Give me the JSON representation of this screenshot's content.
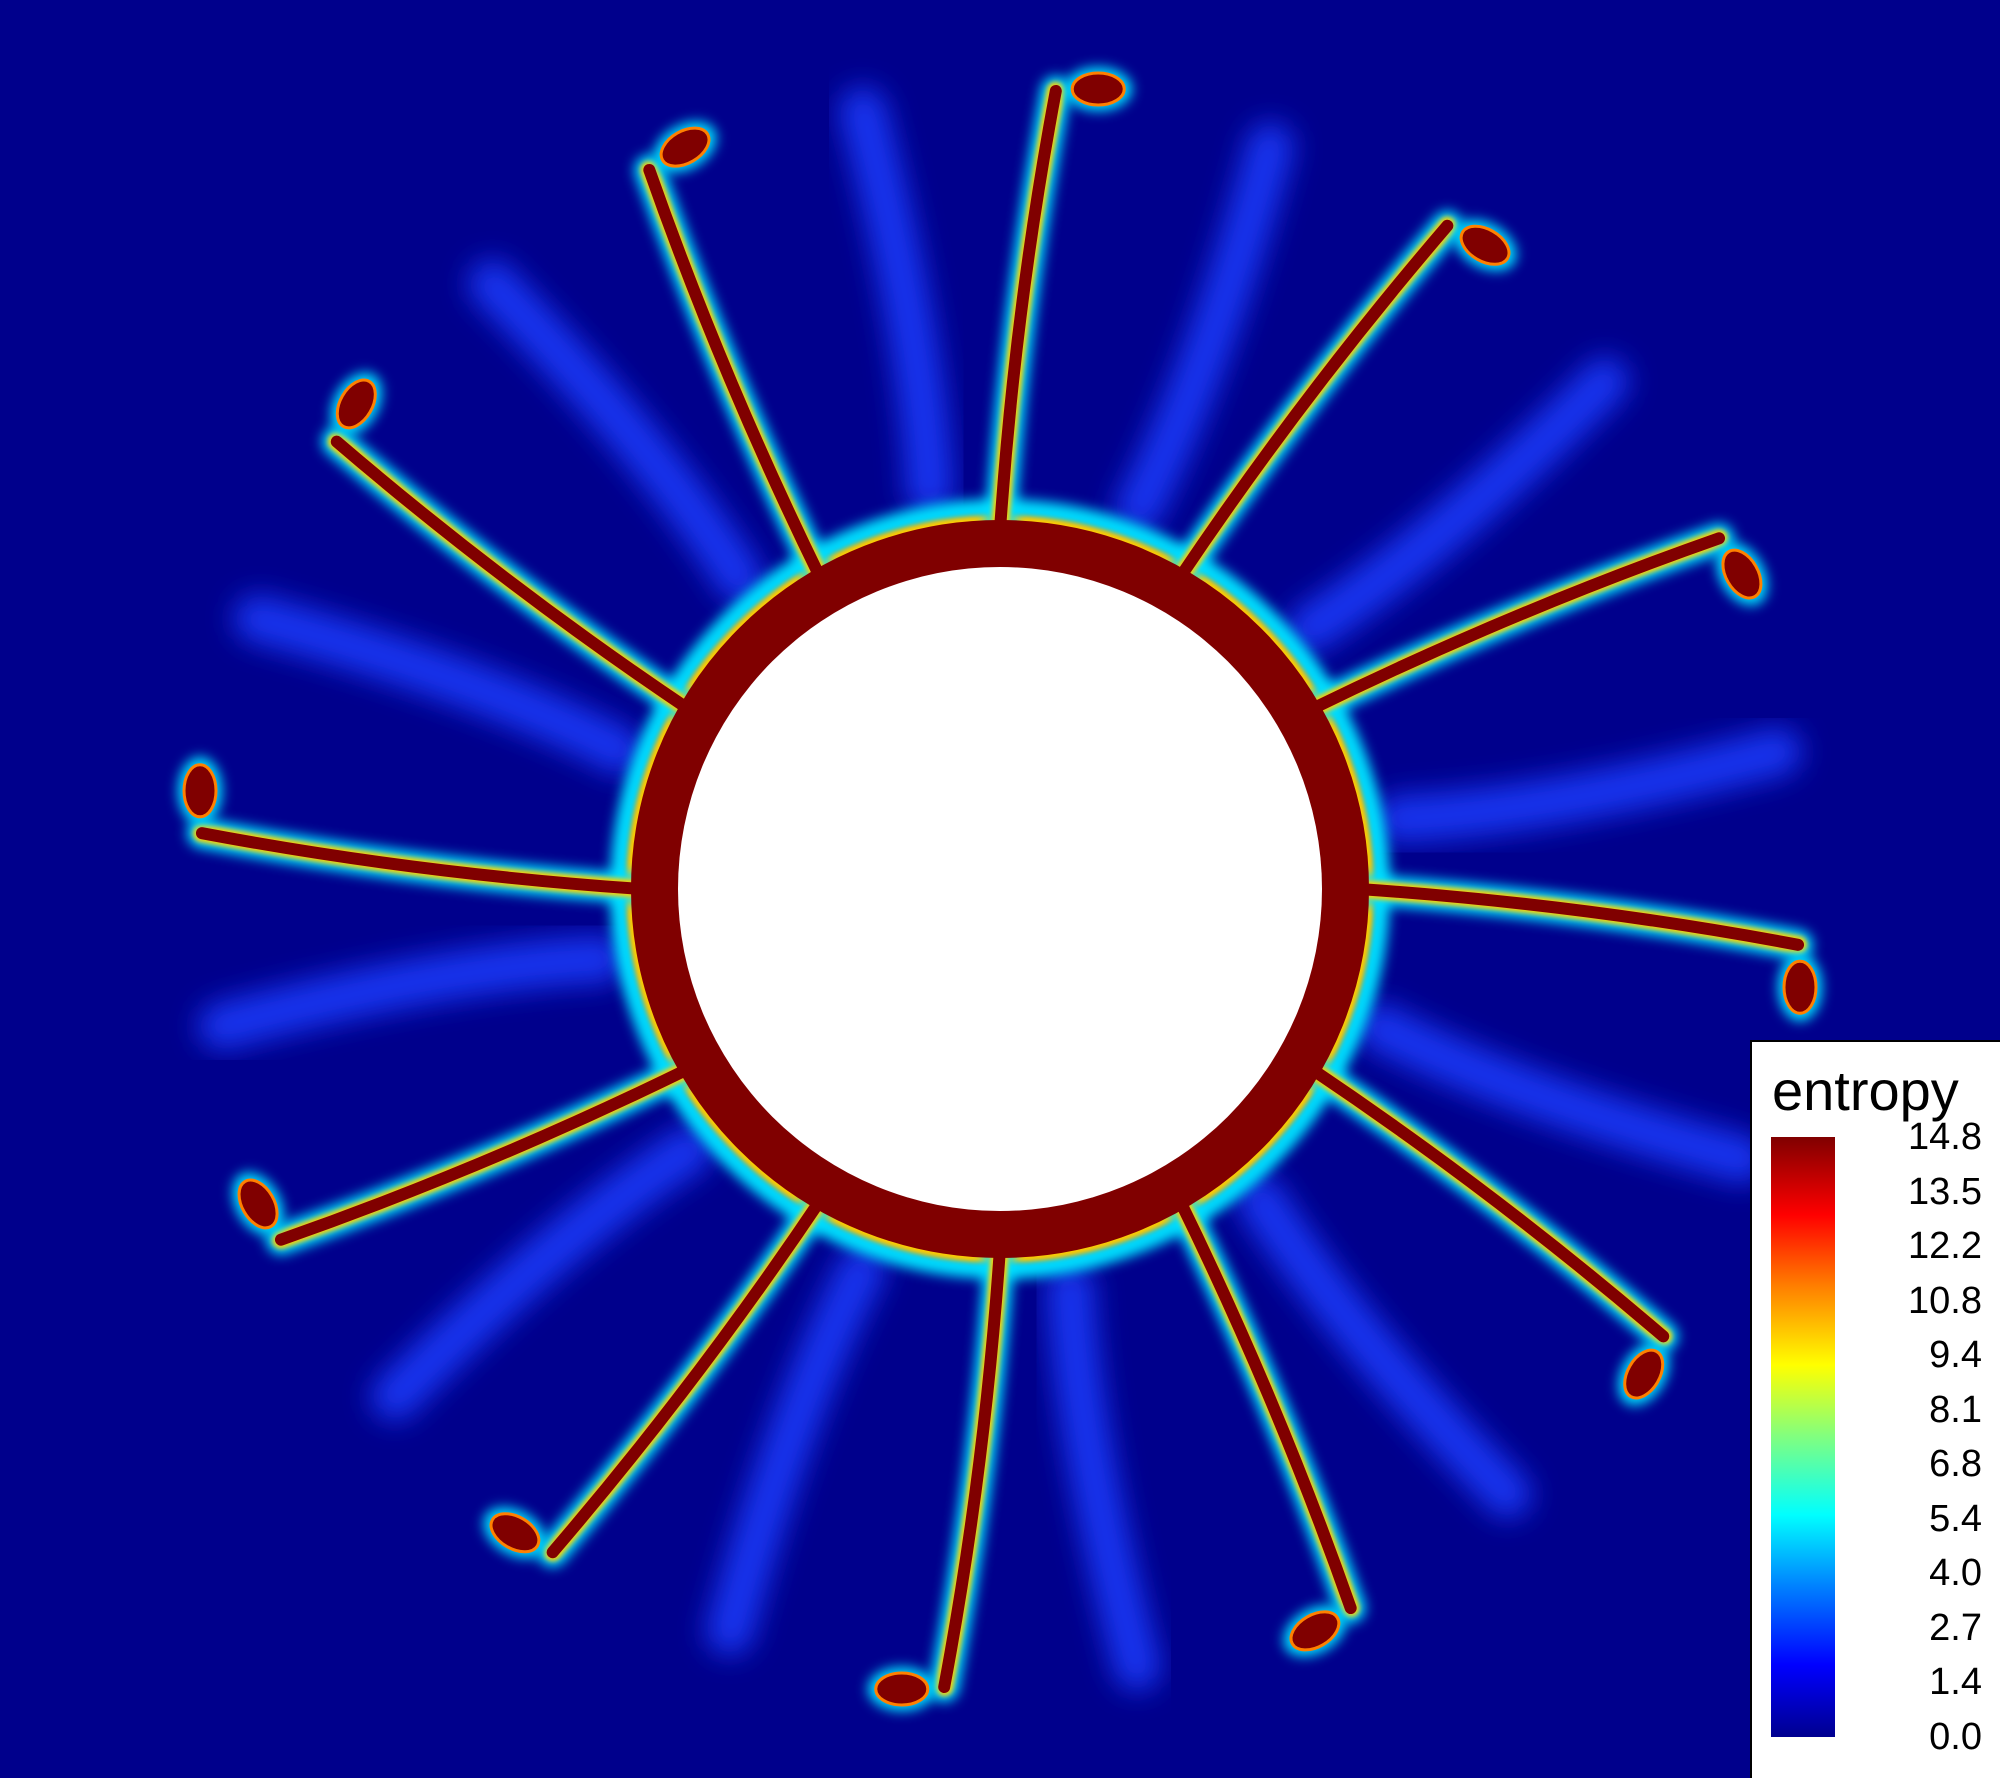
{
  "chart_data": {
    "type": "heatmap",
    "title": "",
    "variable": "entropy",
    "colormap": "jet",
    "range": [
      0.0,
      14.8
    ],
    "colorbar_ticks": [
      "14.8",
      "13.5",
      "12.2",
      "10.8",
      "9.4",
      "8.1",
      "6.8",
      "5.4",
      "4.0",
      "2.7",
      "1.4",
      "0.0"
    ],
    "field": {
      "background_value": 0.0,
      "ring_value": 14.8,
      "finger_value": 14.8,
      "wake_value": 3.2,
      "finger_count": 12
    }
  },
  "colors": {
    "background": "#00008c",
    "ring": "#800000",
    "wake": "#1a3cff",
    "glow": "#00e0ff",
    "hole": "#ffffff"
  },
  "legend": {
    "title": "entropy"
  }
}
